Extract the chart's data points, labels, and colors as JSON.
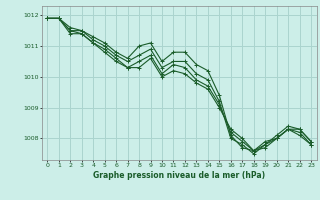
{
  "title": "Graphe pression niveau de la mer (hPa)",
  "bg_color": "#cceee8",
  "grid_color": "#aad4ce",
  "line_color": "#1a5c2a",
  "xlim": [
    -0.5,
    23.5
  ],
  "ylim": [
    1007.3,
    1012.3
  ],
  "yticks": [
    1008,
    1009,
    1010,
    1011,
    1012
  ],
  "xticks": [
    0,
    1,
    2,
    3,
    4,
    5,
    6,
    7,
    8,
    9,
    10,
    11,
    12,
    13,
    14,
    15,
    16,
    17,
    18,
    19,
    20,
    21,
    22,
    23
  ],
  "series": [
    [
      1011.9,
      1011.9,
      1011.6,
      1011.5,
      1011.3,
      1011.1,
      1010.8,
      1010.6,
      1011.0,
      1011.1,
      1010.5,
      1010.8,
      1010.8,
      1010.4,
      1010.2,
      1009.4,
      1008.1,
      1007.7,
      1007.6,
      1007.9,
      1008.0,
      1008.3,
      1008.3,
      1007.9
    ],
    [
      1011.9,
      1011.9,
      1011.5,
      1011.4,
      1011.1,
      1010.9,
      1010.6,
      1010.3,
      1010.5,
      1010.7,
      1010.1,
      1010.4,
      1010.3,
      1009.9,
      1009.7,
      1009.1,
      1008.2,
      1007.9,
      1007.6,
      1007.8,
      1008.0,
      1008.3,
      1008.2,
      1007.8
    ],
    [
      1011.9,
      1011.9,
      1011.5,
      1011.5,
      1011.2,
      1011.0,
      1010.7,
      1010.5,
      1010.7,
      1010.9,
      1010.3,
      1010.5,
      1010.5,
      1010.1,
      1009.9,
      1009.2,
      1008.0,
      1007.8,
      1007.5,
      1007.8,
      1008.1,
      1008.4,
      1008.3,
      1007.9
    ],
    [
      1011.9,
      1011.9,
      1011.4,
      1011.4,
      1011.1,
      1010.8,
      1010.5,
      1010.3,
      1010.3,
      1010.6,
      1010.0,
      1010.2,
      1010.1,
      1009.8,
      1009.6,
      1009.0,
      1008.3,
      1008.0,
      1007.6,
      1007.7,
      1008.0,
      1008.3,
      1008.1,
      1007.8
    ]
  ],
  "figsize": [
    3.2,
    2.0
  ],
  "dpi": 100
}
